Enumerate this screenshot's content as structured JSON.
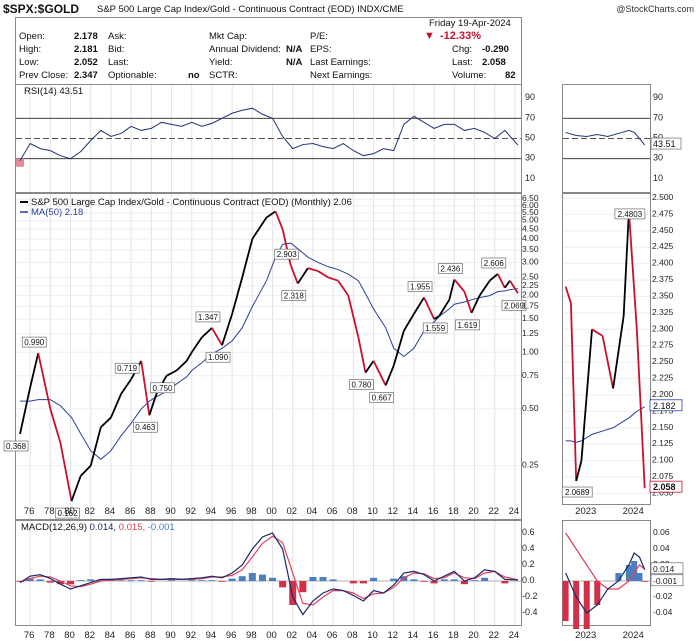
{
  "header": {
    "symbol": "$SPX:$GOLD",
    "subtitle": "S&P 500 Large Cap Index/Gold - Continuous Contract (EOD)  INDX/CME",
    "watermark": "@StockCharts.com"
  },
  "quote": {
    "date_label": "Friday  19-Apr-2024",
    "fields": [
      {
        "label": "Open:",
        "value": "2.178"
      },
      {
        "label": "High:",
        "value": "2.181"
      },
      {
        "label": "Low:",
        "value": "2.052"
      },
      {
        "label": "Prev Close:",
        "value": "2.347"
      },
      {
        "label": "Ask:",
        "value": ""
      },
      {
        "label": "Bid:",
        "value": ""
      },
      {
        "label": "Last:",
        "value": ""
      },
      {
        "label": "Optionable:",
        "value": "no"
      },
      {
        "label": "Mkt Cap:",
        "value": ""
      },
      {
        "label": "Annual Dividend:",
        "value": "N/A"
      },
      {
        "label": "Yield:",
        "value": "N/A"
      },
      {
        "label": "SCTR:",
        "value": ""
      },
      {
        "label": "P/E:",
        "value": ""
      },
      {
        "label": "EPS:",
        "value": ""
      },
      {
        "label": "Last Earnings:",
        "value": ""
      },
      {
        "label": "Next Earnings:",
        "value": ""
      }
    ],
    "change_pct": "-12.33%",
    "chg_label": "Chg:",
    "chg_value": "-0.290",
    "last_label": "Last:",
    "last_value": "2.058",
    "volume_label": "Volume:",
    "volume_value": "82"
  },
  "colors": {
    "price_red": "#c8102e",
    "price_black": "#000000",
    "ma_blue": "#2a3f9a",
    "macd_navy": "#1a2a6c",
    "signal_red": "#e0405a",
    "hist_blue": "#4a7fc0",
    "hist_red": "#d23048",
    "rsi_navy": "#1f3473"
  },
  "chart_data": [
    {
      "type": "line",
      "panel": "rsi",
      "legend": "RSI(14) 43.51",
      "ylim": [
        0,
        100
      ],
      "y_ticks": [
        "10",
        "30",
        "50",
        "70",
        "90"
      ],
      "levels": [
        30,
        50,
        70
      ],
      "x": [
        1975,
        1976,
        1977,
        1978,
        1979,
        1980,
        1981,
        1982,
        1983,
        1984,
        1985,
        1986,
        1987,
        1988,
        1989,
        1990,
        1991,
        1992,
        1993,
        1994,
        1995,
        1996,
        1997,
        1998,
        1999,
        2000,
        2001,
        2002,
        2003,
        2004,
        2005,
        2006,
        2007,
        2008,
        2009,
        2010,
        2011,
        2012,
        2013,
        2014,
        2015,
        2016,
        2017,
        2018,
        2019,
        2020,
        2021,
        2022,
        2023,
        2024.3
      ],
      "values": [
        28,
        45,
        40,
        38,
        33,
        30,
        37,
        48,
        58,
        52,
        55,
        62,
        58,
        60,
        66,
        64,
        62,
        66,
        62,
        65,
        70,
        75,
        78,
        80,
        74,
        70,
        52,
        40,
        44,
        45,
        42,
        40,
        45,
        38,
        33,
        35,
        40,
        38,
        64,
        72,
        66,
        60,
        64,
        64,
        58,
        60,
        56,
        50,
        58,
        43.51
      ]
    },
    {
      "type": "line",
      "panel": "price",
      "legend": "S&P 500 Large Cap Index/Gold - Continuous Contract (EOD) (Monthly) 2.06",
      "ma_legend": "MA(50) 2.18",
      "yscale": "log",
      "ylim": [
        0.14,
        6.6
      ],
      "y_ticks": [
        "6.50",
        "6.00",
        "5.50",
        "5.00",
        "4.50",
        "4.00",
        "3.50",
        "3.00",
        "2.50",
        "2.25",
        "2.00",
        "1.75",
        "1.50",
        "1.25",
        "1.00",
        "0.75",
        "0.50",
        "0.25"
      ],
      "x_ticks": [
        "76",
        "78",
        "80",
        "82",
        "84",
        "86",
        "88",
        "90",
        "92",
        "94",
        "96",
        "98",
        "00",
        "02",
        "04",
        "06",
        "08",
        "10",
        "12",
        "14",
        "16",
        "18",
        "20",
        "22",
        "24"
      ],
      "x": [
        1975,
        1976,
        1976.8,
        1978,
        1979,
        1980.1,
        1981,
        1982,
        1983,
        1984,
        1985,
        1986,
        1987,
        1987.8,
        1988.5,
        1989.5,
        1990.5,
        1991.5,
        1992,
        1993,
        1994,
        1995,
        1996,
        1997,
        1998,
        1999.4,
        2000.3,
        2001,
        2001.8,
        2002.5,
        2003.5,
        2004.5,
        2005.5,
        2006.5,
        2007.5,
        2008.5,
        2009.2,
        2010,
        2011.2,
        2012,
        2013,
        2014,
        2015,
        2016,
        2016.5,
        2017.5,
        2018,
        2019,
        2019.7,
        2020.5,
        2021.5,
        2022.3,
        2023,
        2023.5,
        2024.3
      ],
      "values": [
        0.368,
        0.65,
        0.99,
        0.5,
        0.33,
        0.162,
        0.22,
        0.25,
        0.4,
        0.45,
        0.6,
        0.719,
        0.9,
        0.463,
        0.6,
        0.75,
        0.8,
        0.9,
        1.0,
        1.2,
        1.347,
        1.09,
        1.6,
        2.5,
        4.0,
        5.2,
        5.6,
        4.5,
        2.903,
        2.318,
        2.8,
        2.7,
        2.5,
        2.4,
        2.0,
        1.2,
        0.78,
        0.9,
        0.667,
        0.85,
        1.3,
        1.6,
        1.955,
        1.5,
        1.559,
        1.9,
        2.436,
        2.1,
        1.619,
        2.0,
        2.4,
        2.606,
        2.2,
        2.4,
        2.058
      ],
      "ma": [
        0.55,
        0.55,
        0.56,
        0.56,
        0.52,
        0.45,
        0.37,
        0.3,
        0.27,
        0.3,
        0.36,
        0.42,
        0.5,
        0.55,
        0.58,
        0.62,
        0.68,
        0.74,
        0.8,
        0.88,
        0.98,
        1.05,
        1.15,
        1.35,
        1.75,
        2.4,
        3.2,
        3.75,
        3.8,
        3.55,
        3.2,
        3.0,
        2.85,
        2.75,
        2.6,
        2.4,
        2.05,
        1.7,
        1.35,
        1.05,
        0.95,
        1.05,
        1.3,
        1.45,
        1.55,
        1.7,
        1.8,
        1.85,
        1.9,
        1.95,
        2.0,
        2.1,
        2.12,
        2.15,
        2.18
      ],
      "annotations": [
        "0.368",
        "0.990",
        "0.162",
        "0.719",
        "0.463",
        "0.750",
        "1.347",
        "1.090",
        "2.903",
        "2.318",
        "0.780",
        "0.667",
        "1.955",
        "1.559",
        "2.436",
        "1.619",
        "2.606",
        "2.069"
      ]
    },
    {
      "type": "line",
      "panel": "macd",
      "legend": "MACD(12,26,9) 0.014, 0.015, -0.001",
      "legend_parts": [
        "MACD(12,26,9)",
        "0.014,",
        "0.015,",
        "-0.001"
      ],
      "ylim": [
        -0.5,
        0.7
      ],
      "y_ticks": [
        "0.6",
        "0.4",
        "0.2",
        "0.0",
        "-0.2",
        "-0.4"
      ],
      "x": [
        1975,
        1976,
        1977,
        1978,
        1979,
        1980,
        1981,
        1982,
        1983,
        1984,
        1985,
        1986,
        1987,
        1988,
        1989,
        1990,
        1991,
        1992,
        1993,
        1994,
        1995,
        1996,
        1997,
        1998,
        1999,
        2000,
        2001,
        2002,
        2003,
        2004,
        2005,
        2006,
        2007,
        2008,
        2009,
        2010,
        2011,
        2012,
        2013,
        2014,
        2015,
        2016,
        2017,
        2018,
        2019,
        2020,
        2021,
        2022,
        2023,
        2024.3
      ],
      "macd": [
        -0.02,
        0.06,
        0.08,
        0.03,
        -0.04,
        -0.1,
        -0.06,
        -0.02,
        0.02,
        0.02,
        0.03,
        0.04,
        0.05,
        0.02,
        0.02,
        0.03,
        0.02,
        0.03,
        0.04,
        0.06,
        0.04,
        0.1,
        0.2,
        0.4,
        0.55,
        0.6,
        0.4,
        -0.2,
        -0.42,
        -0.25,
        -0.15,
        -0.1,
        -0.12,
        -0.18,
        -0.25,
        -0.12,
        -0.15,
        -0.05,
        0.1,
        0.12,
        0.08,
        0.0,
        0.06,
        0.12,
        0.0,
        0.04,
        0.14,
        0.12,
        0.02,
        0.014
      ],
      "signal": [
        -0.01,
        0.03,
        0.06,
        0.05,
        0.0,
        -0.06,
        -0.07,
        -0.04,
        0.0,
        0.01,
        0.02,
        0.03,
        0.04,
        0.03,
        0.02,
        0.02,
        0.02,
        0.02,
        0.03,
        0.05,
        0.05,
        0.07,
        0.14,
        0.3,
        0.47,
        0.56,
        0.48,
        0.1,
        -0.28,
        -0.3,
        -0.2,
        -0.12,
        -0.12,
        -0.15,
        -0.22,
        -0.16,
        -0.15,
        -0.08,
        0.04,
        0.1,
        0.09,
        0.03,
        0.04,
        0.1,
        0.04,
        0.03,
        0.1,
        0.12,
        0.05,
        0.015
      ]
    },
    {
      "type": "line",
      "panel": "rsi_daily",
      "y_ticks": [
        "90",
        "70",
        "50",
        "30",
        "10"
      ],
      "last_label": "43.51",
      "x": [
        2022.8,
        2023.0,
        2023.2,
        2023.4,
        2023.6,
        2023.8,
        2024.0,
        2024.1,
        2024.2,
        2024.3
      ],
      "values": [
        56,
        53,
        52,
        54,
        52,
        55,
        58,
        56,
        50,
        43.51
      ]
    },
    {
      "type": "line",
      "panel": "price_daily",
      "y_ticks": [
        "2.500",
        "2.475",
        "2.450",
        "2.425",
        "2.400",
        "2.375",
        "2.350",
        "2.325",
        "2.300",
        "2.275",
        "2.250",
        "2.225",
        "2.200",
        "2.175",
        "2.150",
        "2.125",
        "2.100",
        "2.075",
        "2.050"
      ],
      "x_ticks": [
        "2023",
        "2024"
      ],
      "annotations": [
        "2.4803",
        "2.0689"
      ],
      "label_ma": "2.182",
      "label_last": "2.058",
      "ylim": [
        2.04,
        2.5
      ],
      "x": [
        2022.8,
        2022.9,
        2023.0,
        2023.1,
        2023.3,
        2023.5,
        2023.7,
        2023.9,
        2024.0,
        2024.15,
        2024.3
      ],
      "values": [
        2.365,
        2.34,
        2.0689,
        2.1,
        2.3,
        2.29,
        2.21,
        2.32,
        2.4803,
        2.3,
        2.058
      ],
      "ma": [
        2.13,
        2.13,
        2.128,
        2.13,
        2.14,
        2.145,
        2.15,
        2.16,
        2.165,
        2.175,
        2.182
      ]
    },
    {
      "type": "line",
      "panel": "macd_daily",
      "y_ticks": [
        "0.06",
        "0.04",
        "0.02",
        "0.014",
        "0.00",
        "-0.001",
        "-0.02",
        "-0.04"
      ],
      "x_ticks": [
        "2023",
        "2024"
      ],
      "x": [
        2022.8,
        2023.0,
        2023.2,
        2023.4,
        2023.6,
        2023.8,
        2024.0,
        2024.1,
        2024.2,
        2024.3
      ],
      "macd": [
        0.01,
        -0.02,
        -0.04,
        -0.03,
        -0.01,
        0.0,
        0.02,
        0.035,
        0.03,
        0.014
      ],
      "signal": [
        0.06,
        0.04,
        0.02,
        0.0,
        -0.01,
        -0.01,
        0.0,
        0.01,
        0.02,
        0.015
      ]
    }
  ]
}
